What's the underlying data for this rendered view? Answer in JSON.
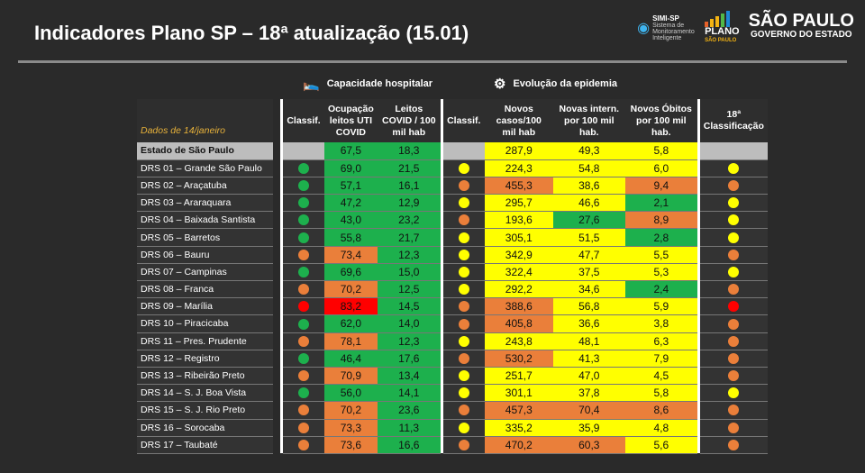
{
  "header": {
    "title": "Indicadores Plano SP – 18ª atualização (15.01)",
    "logo_simi": "SIMI-SP",
    "logo_simi_sub": "Sistema de Monitoramento Inteligente",
    "logo_plano": "PLANO",
    "logo_plano_sub": "SÃO PAULO",
    "logo_sp": "SÃO PAULO",
    "logo_sp_sub": "GOVERNO DO ESTADO"
  },
  "sections": {
    "hospital": "Capacidade hospitalar",
    "epidemia": "Evolução da epidemia"
  },
  "columns": {
    "date": "Dados de 14/janeiro",
    "classif1": "Classif.",
    "uti": "Ocupação leitos UTI COVID",
    "leitos": "Leitos COVID / 100 mil hab",
    "classif2": "Classif.",
    "casos": "Novos casos/100 mil hab",
    "intern": "Novas intern. por 100 mil hab.",
    "obitos": "Novos Óbitos por 100 mil hab.",
    "final": "18ª Classificação"
  },
  "colors": {
    "green": "#1db04d",
    "yellow": "#ffff00",
    "orange": "#ea7f3a",
    "red": "#ff0000"
  },
  "state": {
    "name": "Estado de São Paulo",
    "uti": "67,5",
    "leitos": "18,3",
    "casos": "287,9",
    "intern": "49,3",
    "obitos": "5,8",
    "colors": [
      "g",
      "g",
      "y",
      "y",
      "y"
    ]
  },
  "rows": [
    {
      "name": "DRS 01 – Grande São Paulo",
      "c1": "g",
      "uti": "69,0",
      "leitos": "21,5",
      "c2": "y",
      "casos": "224,3",
      "intern": "54,8",
      "obitos": "6,0",
      "final": "y",
      "colors": [
        "g",
        "g",
        "y",
        "y",
        "y"
      ]
    },
    {
      "name": "DRS 02 – Araçatuba",
      "c1": "g",
      "uti": "57,1",
      "leitos": "16,1",
      "c2": "o",
      "casos": "455,3",
      "intern": "38,6",
      "obitos": "9,4",
      "final": "o",
      "colors": [
        "g",
        "g",
        "o",
        "y",
        "o"
      ]
    },
    {
      "name": "DRS 03 – Araraquara",
      "c1": "g",
      "uti": "47,2",
      "leitos": "12,9",
      "c2": "y",
      "casos": "295,7",
      "intern": "46,6",
      "obitos": "2,1",
      "final": "y",
      "colors": [
        "g",
        "g",
        "y",
        "y",
        "g"
      ]
    },
    {
      "name": "DRS 04 – Baixada Santista",
      "c1": "g",
      "uti": "43,0",
      "leitos": "23,2",
      "c2": "o",
      "casos": "193,6",
      "intern": "27,6",
      "obitos": "8,9",
      "final": "y",
      "colors": [
        "g",
        "g",
        "y",
        "g",
        "o"
      ]
    },
    {
      "name": "DRS 05 – Barretos",
      "c1": "g",
      "uti": "55,8",
      "leitos": "21,7",
      "c2": "y",
      "casos": "305,1",
      "intern": "51,5",
      "obitos": "2,8",
      "final": "y",
      "colors": [
        "g",
        "g",
        "y",
        "y",
        "g"
      ]
    },
    {
      "name": "DRS 06 – Bauru",
      "c1": "o",
      "uti": "73,4",
      "leitos": "12,3",
      "c2": "y",
      "casos": "342,9",
      "intern": "47,7",
      "obitos": "5,5",
      "final": "o",
      "colors": [
        "o",
        "g",
        "y",
        "y",
        "y"
      ]
    },
    {
      "name": "DRS 07 – Campinas",
      "c1": "g",
      "uti": "69,6",
      "leitos": "15,0",
      "c2": "y",
      "casos": "322,4",
      "intern": "37,5",
      "obitos": "5,3",
      "final": "y",
      "colors": [
        "g",
        "g",
        "y",
        "y",
        "y"
      ]
    },
    {
      "name": "DRS 08 – Franca",
      "c1": "o",
      "uti": "70,2",
      "leitos": "12,5",
      "c2": "y",
      "casos": "292,2",
      "intern": "34,6",
      "obitos": "2,4",
      "final": "o",
      "colors": [
        "o",
        "g",
        "y",
        "y",
        "g"
      ]
    },
    {
      "name": "DRS 09 – Marília",
      "c1": "r",
      "uti": "83,2",
      "leitos": "14,5",
      "c2": "o",
      "casos": "388,6",
      "intern": "56,8",
      "obitos": "5,9",
      "final": "r",
      "colors": [
        "r",
        "g",
        "o",
        "y",
        "y"
      ]
    },
    {
      "name": "DRS 10 – Piracicaba",
      "c1": "g",
      "uti": "62,0",
      "leitos": "14,0",
      "c2": "o",
      "casos": "405,8",
      "intern": "36,6",
      "obitos": "3,8",
      "final": "o",
      "colors": [
        "g",
        "g",
        "o",
        "y",
        "y"
      ]
    },
    {
      "name": "DRS 11 – Pres. Prudente",
      "c1": "o",
      "uti": "78,1",
      "leitos": "12,3",
      "c2": "y",
      "casos": "243,8",
      "intern": "48,1",
      "obitos": "6,3",
      "final": "o",
      "colors": [
        "o",
        "g",
        "y",
        "y",
        "y"
      ]
    },
    {
      "name": "DRS 12 – Registro",
      "c1": "g",
      "uti": "46,4",
      "leitos": "17,6",
      "c2": "o",
      "casos": "530,2",
      "intern": "41,3",
      "obitos": "7,9",
      "final": "o",
      "colors": [
        "g",
        "g",
        "o",
        "y",
        "y"
      ]
    },
    {
      "name": "DRS 13 – Ribeirão Preto",
      "c1": "o",
      "uti": "70,9",
      "leitos": "13,4",
      "c2": "y",
      "casos": "251,7",
      "intern": "47,0",
      "obitos": "4,5",
      "final": "o",
      "colors": [
        "o",
        "g",
        "y",
        "y",
        "y"
      ]
    },
    {
      "name": "DRS 14 – S. J. Boa Vista",
      "c1": "g",
      "uti": "56,0",
      "leitos": "14,1",
      "c2": "y",
      "casos": "301,1",
      "intern": "37,8",
      "obitos": "5,8",
      "final": "y",
      "colors": [
        "g",
        "g",
        "y",
        "y",
        "y"
      ]
    },
    {
      "name": "DRS 15 – S. J. Rio Preto",
      "c1": "o",
      "uti": "70,2",
      "leitos": "23,6",
      "c2": "o",
      "casos": "457,3",
      "intern": "70,4",
      "obitos": "8,6",
      "final": "o",
      "colors": [
        "o",
        "g",
        "o",
        "o",
        "o"
      ]
    },
    {
      "name": "DRS 16 – Sorocaba",
      "c1": "o",
      "uti": "73,3",
      "leitos": "11,3",
      "c2": "y",
      "casos": "335,2",
      "intern": "35,9",
      "obitos": "4,8",
      "final": "o",
      "colors": [
        "o",
        "g",
        "y",
        "y",
        "y"
      ]
    },
    {
      "name": "DRS 17 – Taubaté",
      "c1": "o",
      "uti": "73,6",
      "leitos": "16,6",
      "c2": "o",
      "casos": "470,2",
      "intern": "60,3",
      "obitos": "5,6",
      "final": "o",
      "colors": [
        "o",
        "g",
        "o",
        "o",
        "y"
      ]
    }
  ]
}
